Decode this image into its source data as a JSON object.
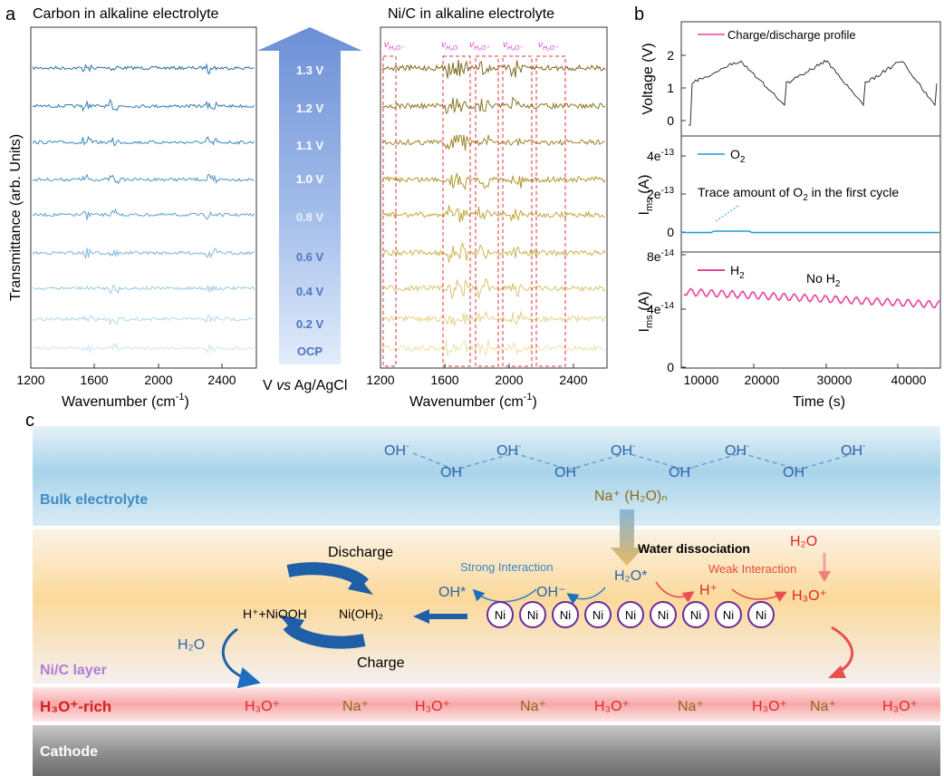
{
  "panel_a": {
    "letter": "a",
    "left": {
      "title": "Carbon in alkaline electrolyte",
      "xticks": [
        "1200",
        "1600",
        "2000",
        "2400"
      ],
      "xlabel": "Wavenumber (cm",
      "xlabel_sup": "-1",
      "xlabel_end": ")",
      "ylabel": "Transmittance (arb. Units)"
    },
    "arrow": {
      "levels": [
        "1.3 V",
        "1.2 V",
        "1.1 V",
        "1.0 V",
        "0.8 V",
        "0.6 V",
        "0.4 V",
        "0.2 V",
        "OCP"
      ],
      "label_pre": "V ",
      "label_vs": "vs",
      "label_post": " Ag/AgCl"
    },
    "right": {
      "title": "Ni/C in alkaline electrolyte",
      "xticks": [
        "1200",
        "1600",
        "2000",
        "2400"
      ],
      "xlabel": "Wavenumber (cm",
      "xlabel_sup": "-1",
      "xlabel_end": ")",
      "region_labels": [
        "ν",
        "ν",
        "ν",
        "ν",
        "ν"
      ],
      "region_subs": [
        "H₃O⁺",
        "H₂O",
        "H₃O⁺",
        "H₃O⁺",
        "H₂O⁺"
      ]
    },
    "colors": {
      "carbon": [
        "#d2e6f2",
        "#b6d7ea",
        "#9bc9e3",
        "#7fb7da",
        "#5fa5ce",
        "#4b97c4",
        "#3989bb",
        "#2d7cb1",
        "#2a6fa6"
      ],
      "nic": [
        "#ece2a8",
        "#e2d48a",
        "#d7c46a",
        "#ccb54e",
        "#c1a63c",
        "#b29530",
        "#9e8428",
        "#8a7521",
        "#7c6a1d"
      ],
      "region_box": "#e0303a",
      "region_text": "#d93ad3"
    }
  },
  "panel_b": {
    "letter": "b",
    "voltage": {
      "ylabel": "Voltage (V)",
      "yticks": [
        "0",
        "1",
        "2"
      ],
      "legend": "Charge/discharge profile",
      "legend_color": "#e8439c"
    },
    "o2": {
      "ylabel": "I",
      "ylabel_sub": "ms",
      "ylabel_end": " (A)",
      "yticks": [
        "0",
        "2e",
        "4e"
      ],
      "ytick_sup": "-13",
      "legend": "O",
      "legend_sub": "2",
      "legend_color": "#1e9ad6",
      "annotation": "Trace amount of O",
      "annotation_sub": "2",
      "annotation_end": " in the first cycle"
    },
    "h2": {
      "ylabel": "I",
      "ylabel_sub": "ms",
      "ylabel_end": " (A)",
      "yticks": [
        "0",
        "4e",
        "8e"
      ],
      "ytick_sup": "-14",
      "legend": "H",
      "legend_sub": "2",
      "legend_color": "#e8439c",
      "annotation": "No H",
      "annotation_sub": "2"
    },
    "xticks": [
      "10000",
      "20000",
      "30000",
      "40000"
    ],
    "xlabel": "Time (s)"
  },
  "panel_c": {
    "letter": "c",
    "bulk_label": "Bulk electrolyte",
    "oh": "OH",
    "oh_sup": "-",
    "na_hydrate": "Na⁺ (H₂O)ₙ",
    "discharge": "Discharge",
    "charge": "Charge",
    "reactant": "H⁺+NiOOH",
    "product": "Ni(OH)₂",
    "h2o": "H₂O",
    "strong": "Strong Interaction",
    "weak": "Weak Interaction",
    "water_dissociation": "Water  dissociation",
    "ohstar": "OH*",
    "ohminus": "OH⁻",
    "h2ostar": "H₂O*",
    "hplus": "H⁺",
    "h2o_red": "H₂O",
    "h3o_red": "H₃O⁺",
    "ni": "Ni",
    "nic_layer": "Ni/C layer",
    "rich_label": "H₃O⁺-rich",
    "rich_species": [
      "H₃O⁺",
      "Na⁺",
      "H₃O⁺",
      "Na⁺",
      "H₃O⁺",
      "Na⁺",
      "H₃O⁺",
      "Na⁺",
      "H₃O⁺"
    ],
    "cathode": "Cathode"
  }
}
